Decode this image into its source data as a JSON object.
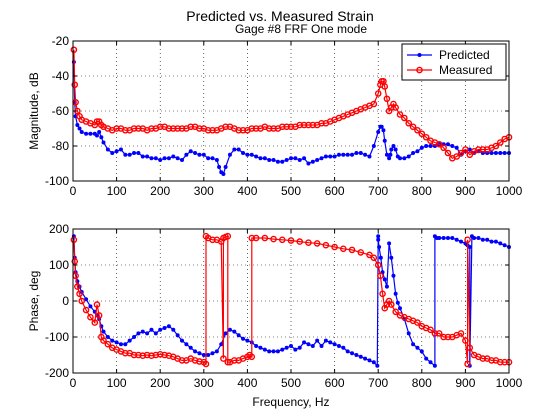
{
  "figure": {
    "title": "Predicted vs. Measured Strain",
    "subtitle": "Gage #8 FRF One mode"
  },
  "chart_data": [
    {
      "type": "line",
      "id": "magnitude",
      "xlabel": "",
      "ylabel": "Magnitude, dB",
      "xlim": [
        0,
        1000
      ],
      "ylim": [
        -100,
        -20
      ],
      "xticks": [
        0,
        100,
        200,
        300,
        400,
        500,
        600,
        700,
        800,
        900,
        1000
      ],
      "yticks": [
        -20,
        -40,
        -60,
        -80,
        -100
      ],
      "grid": true,
      "legend": {
        "position": "top-right",
        "entries": [
          {
            "label": "Predicted",
            "color": "#0000ff",
            "marker": "dot"
          },
          {
            "label": "Measured",
            "color": "#ff0000",
            "marker": "circle"
          }
        ]
      },
      "series": [
        {
          "name": "Predicted",
          "color": "#0000ff",
          "marker": "dot",
          "x": [
            2,
            4,
            6,
            10,
            15,
            20,
            30,
            40,
            50,
            55,
            60,
            65,
            70,
            80,
            90,
            100,
            110,
            120,
            130,
            140,
            150,
            160,
            170,
            180,
            190,
            200,
            210,
            220,
            230,
            240,
            250,
            260,
            270,
            280,
            290,
            300,
            310,
            320,
            330,
            335,
            340,
            345,
            350,
            360,
            370,
            380,
            390,
            400,
            410,
            420,
            430,
            440,
            450,
            460,
            470,
            480,
            490,
            500,
            510,
            520,
            530,
            540,
            550,
            560,
            570,
            580,
            590,
            600,
            610,
            620,
            630,
            640,
            650,
            660,
            670,
            680,
            690,
            700,
            705,
            708,
            712,
            715,
            720,
            725,
            728,
            730,
            735,
            740,
            745,
            750,
            760,
            770,
            780,
            790,
            800,
            810,
            820,
            830,
            840,
            850,
            860,
            870,
            880,
            890,
            900,
            910,
            920,
            930,
            940,
            950,
            960,
            970,
            980,
            990,
            1000
          ],
          "y": [
            -32,
            -55,
            -63,
            -68,
            -70,
            -72,
            -73,
            -73,
            -73,
            -74,
            -72,
            -75,
            -78,
            -82,
            -84,
            -83,
            -82,
            -85,
            -85,
            -84,
            -84,
            -86,
            -86,
            -87,
            -87,
            -88,
            -87,
            -87,
            -86,
            -87,
            -88,
            -85,
            -83,
            -84,
            -85,
            -85,
            -87,
            -87,
            -88,
            -92,
            -95,
            -96,
            -92,
            -85,
            -82,
            -82,
            -84,
            -85,
            -85,
            -86,
            -87,
            -87,
            -88,
            -88,
            -89,
            -89,
            -88,
            -87,
            -87,
            -88,
            -87,
            -90,
            -89,
            -88,
            -87,
            -86,
            -86,
            -86,
            -85,
            -85,
            -85,
            -85,
            -84,
            -84,
            -85,
            -86,
            -80,
            -72,
            -69,
            -69,
            -71,
            -77,
            -85,
            -87,
            -85,
            -82,
            -80,
            -82,
            -86,
            -87,
            -87,
            -86,
            -84,
            -83,
            -81,
            -80,
            -80,
            -80,
            -79,
            -79,
            -79,
            -80,
            -81,
            -85,
            -83,
            -82,
            -84,
            -83,
            -84,
            -84,
            -84,
            -84,
            -84,
            -84,
            -84
          ]
        },
        {
          "name": "Measured",
          "color": "#ff0000",
          "marker": "circle",
          "x": [
            2,
            4,
            6,
            10,
            15,
            20,
            30,
            40,
            50,
            55,
            60,
            65,
            70,
            80,
            90,
            100,
            110,
            120,
            130,
            140,
            150,
            160,
            170,
            180,
            190,
            200,
            210,
            220,
            230,
            240,
            250,
            260,
            270,
            280,
            290,
            300,
            310,
            320,
            330,
            340,
            350,
            360,
            370,
            380,
            390,
            400,
            410,
            420,
            430,
            440,
            450,
            460,
            470,
            480,
            490,
            500,
            510,
            520,
            530,
            540,
            550,
            560,
            570,
            580,
            590,
            600,
            610,
            620,
            630,
            640,
            650,
            660,
            670,
            680,
            690,
            700,
            705,
            708,
            712,
            715,
            720,
            725,
            730,
            735,
            740,
            750,
            760,
            770,
            780,
            790,
            800,
            810,
            820,
            830,
            840,
            850,
            860,
            870,
            880,
            890,
            900,
            910,
            920,
            930,
            940,
            950,
            960,
            970,
            980,
            990,
            1000
          ],
          "y": [
            -25,
            -45,
            -55,
            -60,
            -63,
            -65,
            -66,
            -67,
            -68,
            -66,
            -66,
            -68,
            -69,
            -70,
            -71,
            -70,
            -70,
            -71,
            -71,
            -70,
            -70,
            -70,
            -71,
            -70,
            -70,
            -69,
            -69,
            -70,
            -70,
            -70,
            -70,
            -70,
            -69,
            -69,
            -70,
            -70,
            -71,
            -71,
            -71,
            -70,
            -69,
            -69,
            -70,
            -71,
            -71,
            -71,
            -70,
            -70,
            -70,
            -69,
            -70,
            -70,
            -70,
            -69,
            -69,
            -69,
            -69,
            -68,
            -68,
            -68,
            -68,
            -68,
            -67,
            -67,
            -66,
            -65,
            -64,
            -63,
            -62,
            -61,
            -60,
            -59,
            -58,
            -57,
            -56,
            -50,
            -45,
            -43,
            -43,
            -46,
            -53,
            -60,
            -58,
            -56,
            -58,
            -62,
            -64,
            -67,
            -69,
            -71,
            -73,
            -75,
            -77,
            -78,
            -79,
            -81,
            -84,
            -87,
            -86,
            -84,
            -82,
            -85,
            -83,
            -82,
            -82,
            -82,
            -81,
            -80,
            -78,
            -76,
            -75
          ]
        }
      ]
    },
    {
      "type": "line",
      "id": "phase",
      "xlabel": "Frequency, Hz",
      "ylabel": "Phase, deg",
      "xlim": [
        0,
        1000
      ],
      "ylim": [
        -200,
        200
      ],
      "xticks": [
        0,
        100,
        200,
        300,
        400,
        500,
        600,
        700,
        800,
        900,
        1000
      ],
      "yticks": [
        200,
        100,
        0,
        -100,
        -200
      ],
      "grid": true,
      "series": [
        {
          "name": "Predicted",
          "color": "#0000ff",
          "marker": "dot",
          "x": [
            2,
            4,
            6,
            10,
            15,
            20,
            30,
            40,
            50,
            55,
            60,
            65,
            70,
            80,
            90,
            100,
            110,
            120,
            130,
            140,
            150,
            160,
            170,
            180,
            190,
            200,
            210,
            220,
            230,
            240,
            250,
            260,
            270,
            280,
            290,
            300,
            310,
            320,
            330,
            340,
            350,
            360,
            370,
            380,
            390,
            400,
            410,
            420,
            430,
            440,
            450,
            460,
            470,
            480,
            490,
            500,
            510,
            520,
            530,
            540,
            550,
            560,
            570,
            580,
            590,
            600,
            610,
            620,
            630,
            640,
            650,
            660,
            670,
            680,
            690,
            698,
            700,
            700,
            702,
            706,
            710,
            715,
            720,
            725,
            730,
            735,
            740,
            745,
            750,
            760,
            770,
            780,
            790,
            800,
            810,
            820,
            830,
            830,
            835,
            840,
            850,
            860,
            870,
            880,
            890,
            900,
            905,
            910,
            910,
            915,
            920,
            930,
            940,
            950,
            960,
            970,
            980,
            990,
            1000
          ],
          "y": [
            180,
            120,
            80,
            55,
            40,
            25,
            5,
            -15,
            -30,
            -40,
            -50,
            -70,
            -85,
            -100,
            -110,
            -115,
            -120,
            -120,
            -110,
            -100,
            -90,
            -85,
            -90,
            -80,
            -90,
            -80,
            -75,
            -70,
            -80,
            -95,
            -110,
            -120,
            -130,
            -140,
            -145,
            -150,
            -150,
            -145,
            -140,
            -120,
            -90,
            -80,
            -85,
            -95,
            -105,
            -110,
            -115,
            -125,
            -130,
            -135,
            -140,
            -140,
            -140,
            -135,
            -130,
            -125,
            -135,
            -130,
            -115,
            -120,
            -125,
            -110,
            -125,
            -110,
            -115,
            -120,
            -125,
            -130,
            -140,
            -145,
            -150,
            -155,
            -160,
            -165,
            -170,
            -180,
            180,
            170,
            150,
            120,
            80,
            60,
            40,
            160,
            120,
            70,
            20,
            -5,
            -20,
            -50,
            -90,
            -120,
            -130,
            -140,
            -160,
            -170,
            -180,
            180,
            175,
            175,
            175,
            175,
            175,
            170,
            165,
            160,
            155,
            150,
            -180,
            180,
            175,
            175,
            170,
            170,
            165,
            165,
            160,
            155,
            150
          ]
        },
        {
          "name": "Measured",
          "color": "#ff0000",
          "marker": "circle",
          "x": [
            2,
            4,
            6,
            10,
            15,
            20,
            30,
            40,
            50,
            55,
            60,
            65,
            70,
            80,
            90,
            100,
            110,
            120,
            130,
            140,
            150,
            160,
            170,
            180,
            190,
            200,
            210,
            220,
            230,
            240,
            250,
            260,
            270,
            280,
            290,
            300,
            305,
            305,
            310,
            320,
            330,
            340,
            345,
            345,
            350,
            355,
            355,
            360,
            370,
            380,
            390,
            400,
            405,
            410,
            410,
            420,
            440,
            460,
            480,
            500,
            520,
            540,
            560,
            580,
            600,
            620,
            640,
            660,
            680,
            690,
            700,
            705,
            710,
            715,
            720,
            725,
            730,
            740,
            750,
            760,
            770,
            780,
            790,
            800,
            810,
            820,
            830,
            840,
            850,
            860,
            870,
            880,
            890,
            900,
            905,
            905,
            910,
            920,
            930,
            940,
            950,
            960,
            970,
            980,
            990,
            1000
          ],
          "y": [
            170,
            110,
            70,
            40,
            20,
            0,
            -25,
            -45,
            -60,
            -10,
            -40,
            -100,
            -110,
            -120,
            -130,
            -135,
            -140,
            -145,
            -145,
            -150,
            -150,
            -152,
            -150,
            -152,
            -150,
            -148,
            -150,
            -152,
            -155,
            -160,
            -165,
            -165,
            -160,
            -165,
            -168,
            -170,
            -175,
            180,
            175,
            170,
            170,
            165,
            -160,
            175,
            178,
            180,
            -170,
            -170,
            -165,
            -165,
            -160,
            -155,
            -150,
            -155,
            175,
            175,
            175,
            172,
            170,
            168,
            165,
            162,
            160,
            155,
            150,
            145,
            142,
            135,
            128,
            120,
            100,
            70,
            20,
            -20,
            -10,
            0,
            -10,
            -30,
            -40,
            -45,
            -50,
            -55,
            -60,
            -70,
            -75,
            -80,
            -90,
            -90,
            -100,
            -100,
            -100,
            -95,
            -90,
            -110,
            -175,
            170,
            -130,
            -150,
            -155,
            -160,
            -160,
            -165,
            -165,
            -170,
            -170,
            -170
          ]
        }
      ]
    }
  ]
}
